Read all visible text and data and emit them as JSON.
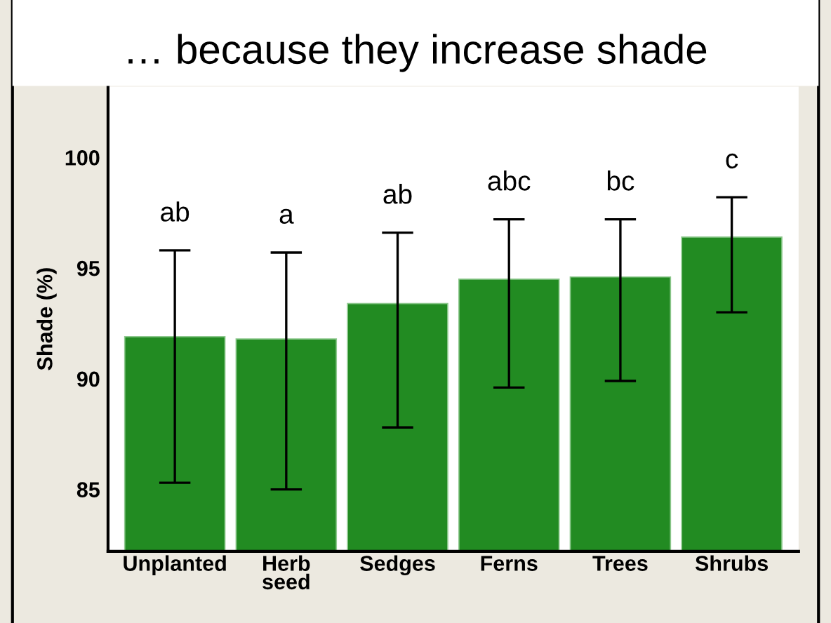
{
  "chart_data": {
    "type": "bar",
    "title": "… because they increase shade",
    "ylabel": "Shade (%)",
    "categories": [
      "Unplanted",
      "Herb\nseed",
      "Sedges",
      "Ferns",
      "Trees",
      "Shrubs"
    ],
    "values": [
      91.9,
      91.8,
      93.4,
      94.5,
      94.6,
      96.4
    ],
    "errors": [
      [
        85.3,
        95.8
      ],
      [
        85.0,
        95.7
      ],
      [
        87.8,
        96.6
      ],
      [
        89.6,
        97.2
      ],
      [
        89.9,
        97.2
      ],
      [
        93.0,
        98.2
      ]
    ],
    "color": "#228b22",
    "ylim": [
      82.2,
      103.2
    ],
    "yticks": [
      85,
      90,
      95,
      100
    ],
    "grid": false,
    "legend": false,
    "annotations": [
      "ab",
      "a",
      "ab",
      "abc",
      "bc",
      "c"
    ]
  }
}
